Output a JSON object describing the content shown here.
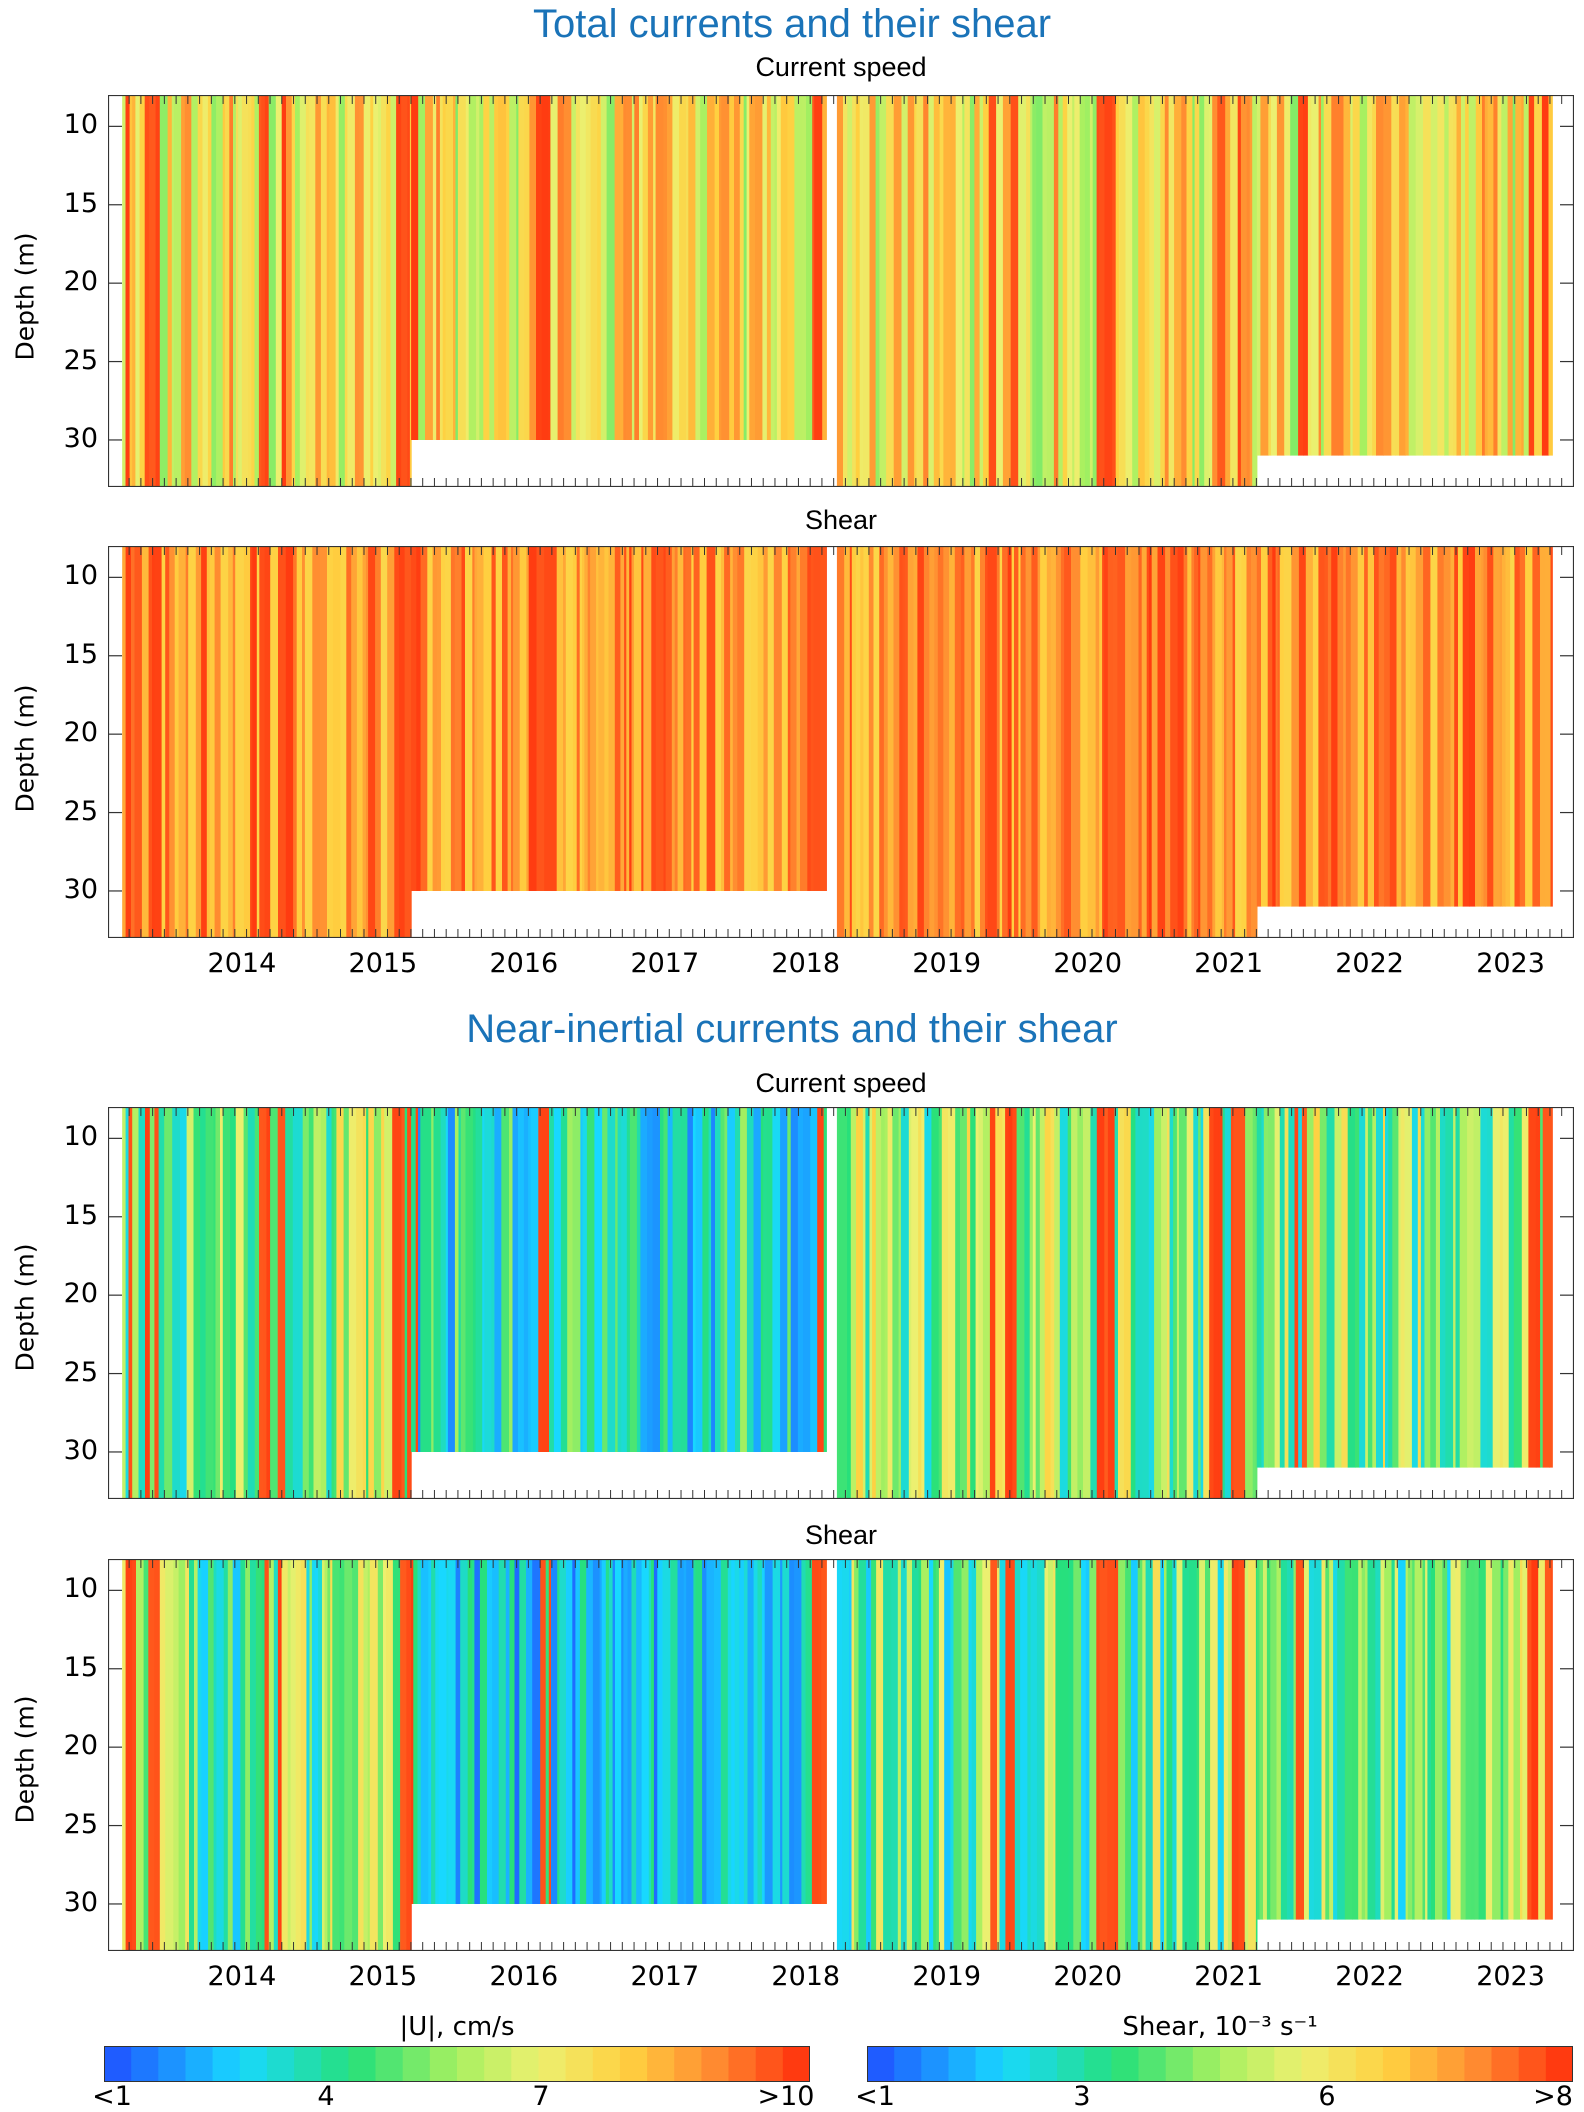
{
  "sections": [
    {
      "title": "Total currents and their shear",
      "panels": [
        {
          "title": "Current speed",
          "ylabel": "Depth (m)",
          "kind": "speed",
          "palette": "total"
        },
        {
          "title": "Shear",
          "ylabel": "Depth (m)",
          "kind": "shear",
          "palette": "total"
        }
      ]
    },
    {
      "title": "Near-inertial currents and their shear",
      "panels": [
        {
          "title": "Current speed",
          "ylabel": "Depth (m)",
          "kind": "speed",
          "palette": "inertial"
        },
        {
          "title": "Shear",
          "ylabel": "Depth (m)",
          "kind": "shear",
          "palette": "inertial"
        }
      ]
    }
  ],
  "chart_data": [
    {
      "type": "heatmap",
      "title": "Current speed",
      "ylabel": "Depth (m)",
      "xlim": [
        2013.1,
        2023.4
      ],
      "ylim": [
        33,
        8
      ],
      "yticks": [
        10,
        15,
        20,
        25,
        30
      ],
      "xticks": [
        "2014",
        "2015",
        "2016",
        "2017",
        "2018",
        "2019",
        "2020",
        "2021",
        "2022",
        "2023"
      ],
      "gaps": [
        {
          "x": [
            2018.15,
            2018.22
          ]
        }
      ],
      "bottom_depth": [
        {
          "x": [
            2013.1,
            2015.2
          ],
          "depth": 33
        },
        {
          "x": [
            2015.2,
            2018.15
          ],
          "depth": 30
        },
        {
          "x": [
            2018.22,
            2021.2
          ],
          "depth": 33
        },
        {
          "x": [
            2021.2,
            2023.3
          ],
          "depth": 31
        }
      ],
      "colorbar": "|U|, cm/s",
      "range": [
        1,
        10
      ]
    },
    {
      "type": "heatmap",
      "title": "Shear",
      "ylabel": "Depth (m)",
      "xlim": [
        2013.1,
        2023.4
      ],
      "ylim": [
        33,
        8
      ],
      "yticks": [
        10,
        15,
        20,
        25,
        30
      ],
      "xticks": [
        "2014",
        "2015",
        "2016",
        "2017",
        "2018",
        "2019",
        "2020",
        "2021",
        "2022",
        "2023"
      ],
      "colorbar": "Shear, 10⁻³ s⁻¹",
      "range": [
        1,
        8
      ]
    },
    {
      "type": "heatmap",
      "title": "Current speed",
      "ylabel": "Depth (m)",
      "xlim": [
        2013.1,
        2023.4
      ],
      "ylim": [
        33,
        8
      ],
      "yticks": [
        10,
        15,
        20,
        25,
        30
      ],
      "colorbar": "|U|, cm/s",
      "range": [
        1,
        10
      ]
    },
    {
      "type": "heatmap",
      "title": "Shear",
      "ylabel": "Depth (m)",
      "xlim": [
        2013.1,
        2023.4
      ],
      "ylim": [
        33,
        8
      ],
      "yticks": [
        10,
        15,
        20,
        25,
        30
      ],
      "xticks": [
        "2014",
        "2015",
        "2016",
        "2017",
        "2018",
        "2019",
        "2020",
        "2021",
        "2022",
        "2023"
      ],
      "colorbar": "Shear, 10⁻³ s⁻¹",
      "range": [
        1,
        8
      ]
    }
  ],
  "yticks": [
    "10",
    "15",
    "20",
    "25",
    "30"
  ],
  "xticks": [
    "2014",
    "2015",
    "2016",
    "2017",
    "2018",
    "2019",
    "2020",
    "2021",
    "2022",
    "2023"
  ],
  "colorbars": [
    {
      "title": "|U|, cm/s",
      "ticks": [
        "<1",
        "4",
        "7",
        ">10"
      ]
    },
    {
      "title": "Shear, 10⁻³ s⁻¹",
      "ticks": [
        "<1",
        "3",
        "6",
        ">8"
      ]
    }
  ],
  "colors": {
    "title": "#1a73b8",
    "low": "#1f5cff",
    "high": "#ff3a10"
  }
}
